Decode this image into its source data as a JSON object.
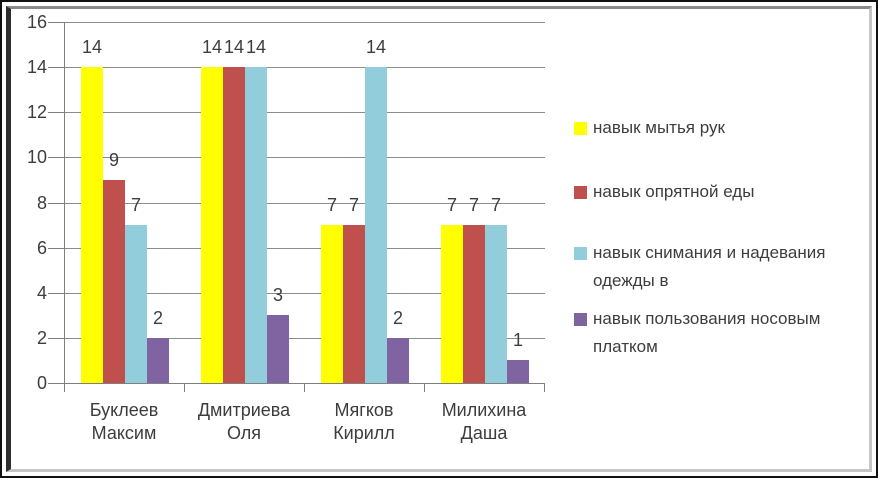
{
  "chart_data": {
    "type": "bar",
    "title": "",
    "categories": [
      "Буклеев Максим",
      "Дмитриева Оля",
      "Мягков Кирилл",
      "Милихина Даша"
    ],
    "series": [
      {
        "name": "навык мытья рук",
        "color": "#FFFF00",
        "values": [
          14,
          14,
          7,
          7
        ]
      },
      {
        "name": "навык опрятной еды",
        "color": "#C0504D",
        "values": [
          9,
          14,
          7,
          7
        ]
      },
      {
        "name": "навык снимания и надевания одежды в",
        "color": "#92CDDC",
        "values": [
          7,
          14,
          14,
          7
        ]
      },
      {
        "name": "навык пользования носовым платком",
        "color": "#8064A2",
        "values": [
          2,
          3,
          2,
          1
        ]
      }
    ],
    "ylim": [
      0,
      16
    ],
    "ytick_step": 2,
    "ytick_labels": [
      "0",
      "2",
      "4",
      "6",
      "8",
      "10",
      "12",
      "14",
      "16"
    ],
    "grid": true,
    "data_labels": true,
    "legend_position": "right",
    "gridline_color": "#8c8c8c",
    "axis_color": "#7f7f7f",
    "text_color": "#3d3d3d"
  }
}
